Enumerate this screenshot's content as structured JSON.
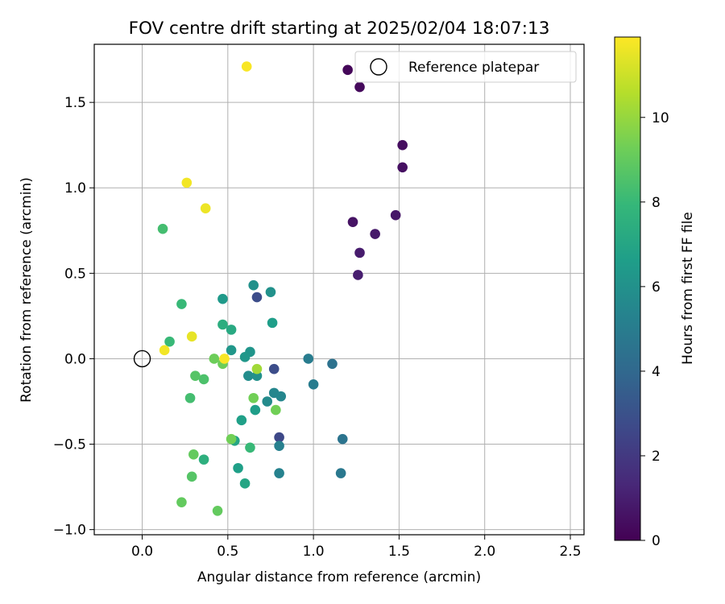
{
  "chart_data": {
    "type": "scatter",
    "title": "FOV centre drift starting at 2025/02/04 18:07:13",
    "xlabel": "Angular distance from reference (arcmin)",
    "ylabel": "Rotation from reference (arcmin)",
    "xlim": [
      -0.28,
      2.58
    ],
    "ylim": [
      -1.03,
      1.84
    ],
    "xticks": [
      0.0,
      0.5,
      1.0,
      1.5,
      2.0,
      2.5
    ],
    "xtick_labels": [
      "0.0",
      "0.5",
      "1.0",
      "1.5",
      "2.0",
      "2.5"
    ],
    "yticks": [
      -1.0,
      -0.5,
      0.0,
      0.5,
      1.0,
      1.5
    ],
    "ytick_labels": [
      "−1.0",
      "−0.5",
      "0.0",
      "0.5",
      "1.0",
      "1.5"
    ],
    "grid": true,
    "legend": {
      "placement": "top-right",
      "label": "Reference platepar"
    },
    "reference": {
      "x": 0.0,
      "y": 0.0
    },
    "colormap": "viridis",
    "colorbar": {
      "label": "Hours from first FF file",
      "range": [
        0,
        11.9
      ],
      "ticks": [
        0,
        2,
        4,
        6,
        8,
        10
      ],
      "tick_labels": [
        "0",
        "2",
        "4",
        "6",
        "8",
        "10"
      ],
      "stops": [
        "#440154",
        "#482878",
        "#3e4989",
        "#31688e",
        "#26828e",
        "#1f9e89",
        "#35b779",
        "#6ece58",
        "#b5de2b",
        "#fde725"
      ]
    },
    "points": [
      {
        "x": 1.2,
        "y": 1.69,
        "c": 0.2
      },
      {
        "x": 1.27,
        "y": 1.59,
        "c": 0.3
      },
      {
        "x": 1.52,
        "y": 1.25,
        "c": 0.4
      },
      {
        "x": 1.52,
        "y": 1.12,
        "c": 0.5
      },
      {
        "x": 1.23,
        "y": 0.8,
        "c": 0.6
      },
      {
        "x": 1.48,
        "y": 0.84,
        "c": 0.7
      },
      {
        "x": 1.36,
        "y": 0.73,
        "c": 0.8
      },
      {
        "x": 1.27,
        "y": 0.62,
        "c": 0.9
      },
      {
        "x": 1.26,
        "y": 0.49,
        "c": 1.0
      },
      {
        "x": 0.67,
        "y": 0.36,
        "c": 2.8
      },
      {
        "x": 0.77,
        "y": -0.06,
        "c": 2.8
      },
      {
        "x": 0.8,
        "y": -0.46,
        "c": 2.6
      },
      {
        "x": 1.11,
        "y": -0.03,
        "c": 4.5
      },
      {
        "x": 1.17,
        "y": -0.47,
        "c": 4.6
      },
      {
        "x": 1.16,
        "y": -0.67,
        "c": 4.8
      },
      {
        "x": 0.97,
        "y": 0.0,
        "c": 5.0
      },
      {
        "x": 1.0,
        "y": -0.15,
        "c": 5.0
      },
      {
        "x": 0.8,
        "y": -0.51,
        "c": 5.2
      },
      {
        "x": 0.8,
        "y": -0.67,
        "c": 5.3
      },
      {
        "x": 0.81,
        "y": -0.22,
        "c": 5.5
      },
      {
        "x": 0.77,
        "y": -0.2,
        "c": 5.5
      },
      {
        "x": 0.73,
        "y": -0.25,
        "c": 5.7
      },
      {
        "x": 0.62,
        "y": -0.1,
        "c": 5.8
      },
      {
        "x": 0.67,
        "y": -0.1,
        "c": 6.0
      },
      {
        "x": 0.75,
        "y": 0.39,
        "c": 6.0
      },
      {
        "x": 0.65,
        "y": 0.43,
        "c": 6.0
      },
      {
        "x": 0.63,
        "y": 0.04,
        "c": 6.2
      },
      {
        "x": 0.6,
        "y": 0.01,
        "c": 6.3
      },
      {
        "x": 0.52,
        "y": 0.05,
        "c": 6.3
      },
      {
        "x": 0.47,
        "y": 0.35,
        "c": 6.4
      },
      {
        "x": 0.76,
        "y": 0.21,
        "c": 6.6
      },
      {
        "x": 0.66,
        "y": -0.3,
        "c": 6.6
      },
      {
        "x": 0.58,
        "y": -0.36,
        "c": 6.7
      },
      {
        "x": 0.56,
        "y": -0.64,
        "c": 6.7
      },
      {
        "x": 0.6,
        "y": -0.73,
        "c": 7.0
      },
      {
        "x": 0.54,
        "y": -0.48,
        "c": 7.0
      },
      {
        "x": 0.52,
        "y": 0.17,
        "c": 7.2
      },
      {
        "x": 0.47,
        "y": 0.2,
        "c": 7.4
      },
      {
        "x": 0.36,
        "y": -0.59,
        "c": 7.5
      },
      {
        "x": 0.63,
        "y": -0.52,
        "c": 8.0
      },
      {
        "x": 0.23,
        "y": 0.32,
        "c": 8.0
      },
      {
        "x": 0.16,
        "y": 0.1,
        "c": 8.0
      },
      {
        "x": 0.28,
        "y": -0.23,
        "c": 8.3
      },
      {
        "x": 0.12,
        "y": 0.76,
        "c": 8.3
      },
      {
        "x": 0.36,
        "y": -0.12,
        "c": 8.5
      },
      {
        "x": 0.31,
        "y": -0.1,
        "c": 8.7
      },
      {
        "x": 0.29,
        "y": -0.69,
        "c": 8.7
      },
      {
        "x": 0.3,
        "y": -0.56,
        "c": 9.0
      },
      {
        "x": 0.23,
        "y": -0.84,
        "c": 9.0
      },
      {
        "x": 0.44,
        "y": -0.89,
        "c": 9.0
      },
      {
        "x": 0.42,
        "y": 0.0,
        "c": 9.2
      },
      {
        "x": 0.47,
        "y": -0.03,
        "c": 9.2
      },
      {
        "x": 0.65,
        "y": -0.23,
        "c": 9.3
      },
      {
        "x": 0.78,
        "y": -0.3,
        "c": 9.3
      },
      {
        "x": 0.52,
        "y": -0.47,
        "c": 9.3
      },
      {
        "x": 0.67,
        "y": -0.06,
        "c": 10.2
      },
      {
        "x": 0.61,
        "y": 1.71,
        "c": 11.8
      },
      {
        "x": 0.26,
        "y": 1.03,
        "c": 11.7
      },
      {
        "x": 0.37,
        "y": 0.88,
        "c": 11.6
      },
      {
        "x": 0.29,
        "y": 0.13,
        "c": 11.5
      },
      {
        "x": 0.13,
        "y": 0.05,
        "c": 11.7
      },
      {
        "x": 0.48,
        "y": 0.0,
        "c": 11.8
      }
    ]
  }
}
